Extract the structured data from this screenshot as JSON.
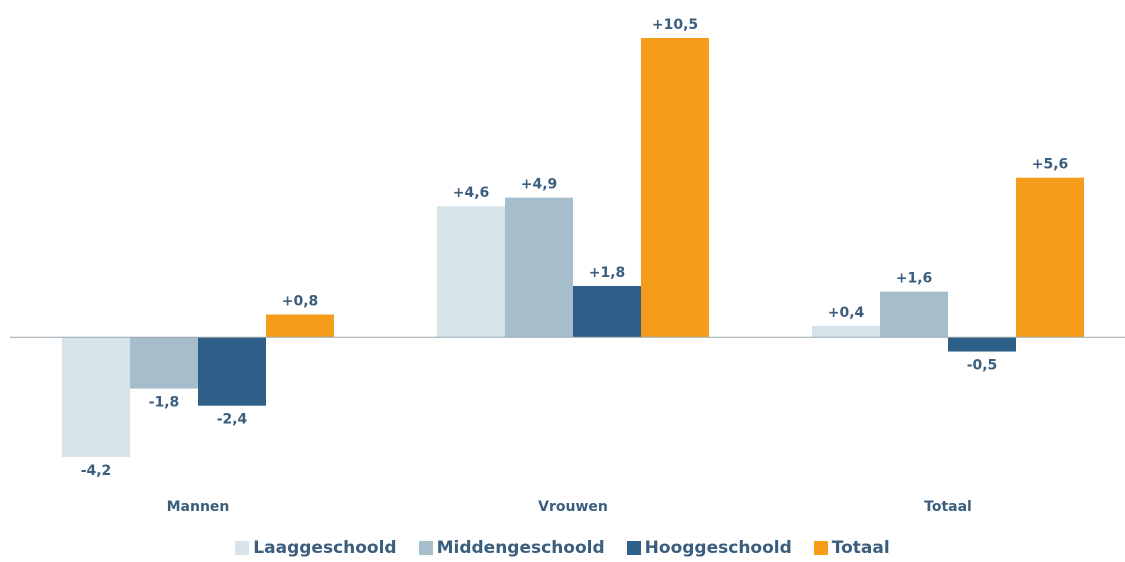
{
  "chart_data": {
    "type": "bar",
    "categories": [
      "Mannen",
      "Vrouwen",
      "Totaal"
    ],
    "series": [
      {
        "name": "Laaggeschoold",
        "color": "#d6e4ea",
        "values": [
          -4.2,
          4.6,
          0.4
        ],
        "value_labels": [
          "-4,2",
          "+4,6",
          "+0,4"
        ]
      },
      {
        "name": "Middengeschoold",
        "color": "#a6bdcc",
        "values": [
          -1.8,
          4.9,
          1.6
        ],
        "value_labels": [
          "-1,8",
          "+4,9",
          "+1,6"
        ]
      },
      {
        "name": "Hooggeschoold",
        "color": "#2e5f88",
        "values": [
          -2.4,
          1.8,
          -0.5
        ],
        "value_labels": [
          "-2,4",
          "+1,8",
          "-0,5"
        ]
      },
      {
        "name": "Totaal",
        "color": "#f59c1a",
        "values": [
          0.8,
          10.5,
          5.6
        ],
        "value_labels": [
          "+0,8",
          "+10,5",
          "+5,6"
        ]
      }
    ]
  }
}
